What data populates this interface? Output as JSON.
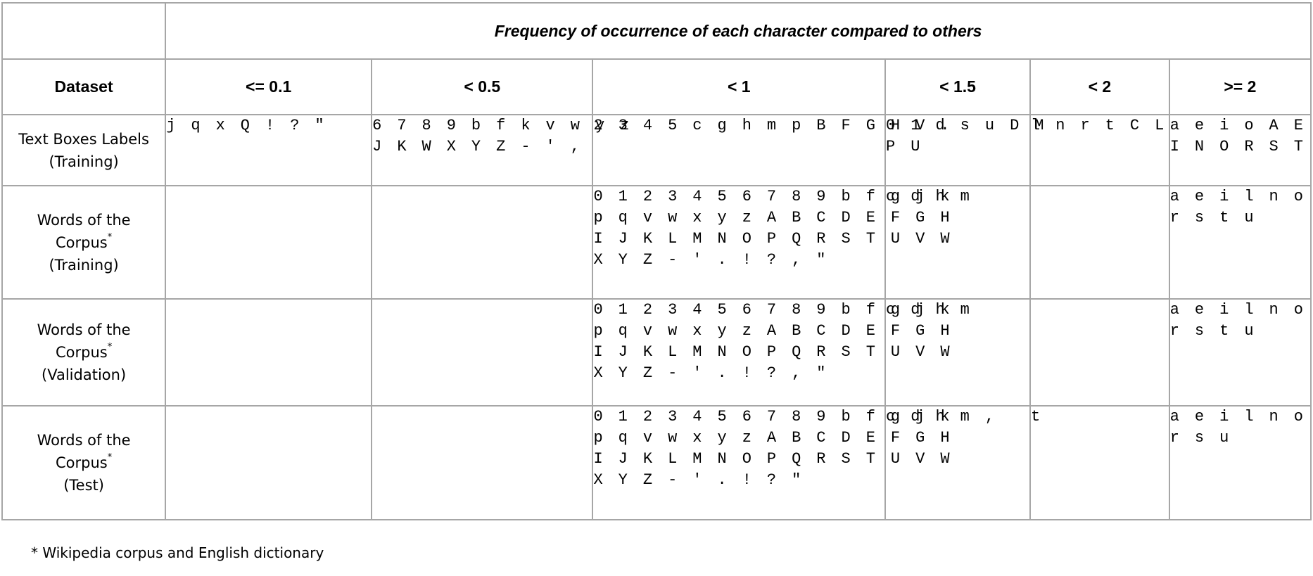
{
  "table": {
    "group_header": "Frequency of occurrence of each character compared to others",
    "dataset_header": "Dataset",
    "columns": [
      "<= 0.1",
      "< 0.5",
      "< 1",
      "< 1.5",
      "< 2",
      ">= 2"
    ],
    "rows": [
      {
        "dataset": {
          "line1": "Text Boxes Labels",
          "line1b": "",
          "marker": "",
          "line2": "(Training)"
        },
        "cells": [
          [
            "j q x Q ! ? \""
          ],
          [
            "6 7 8 9 b f k v w y z",
            "J K W X Y Z - ' ,"
          ],
          [
            "2 3 4 5 c g h m p B F G H V ."
          ],
          [
            "0 1 d s u D M",
            "P U"
          ],
          [
            "l n r t C L"
          ],
          [
            "a e i o A E",
            "I N O R S T"
          ]
        ]
      },
      {
        "dataset": {
          "line1": "Words of the",
          "line1b": "Corpus",
          "marker": "*",
          "line2": "(Training)"
        },
        "cells": [
          [],
          [],
          [
            "0 1 2 3 4 5 6 7 8 9 b f g j k",
            "p q v w x y z A B C D E F G H",
            "I J K L M N O P Q R S T U V W",
            "X Y Z - ' . ! ? , \""
          ],
          [
            "c d h m"
          ],
          [],
          [
            "a e i l n o",
            "r s t u"
          ]
        ]
      },
      {
        "dataset": {
          "line1": "Words of the",
          "line1b": "Corpus",
          "marker": "*",
          "line2": "(Validation)"
        },
        "cells": [
          [],
          [],
          [
            "0 1 2 3 4 5 6 7 8 9 b f g j k",
            "p q v w x y z A B C D E F G H",
            "I J K L M N O P Q R S T U V W",
            "X Y Z - ' . ! ? , \""
          ],
          [
            "c d h m"
          ],
          [],
          [
            "a e i l n o",
            "r s t u"
          ]
        ]
      },
      {
        "dataset": {
          "line1": "Words of the",
          "line1b": "Corpus",
          "marker": "*",
          "line2": "(Test)"
        },
        "cells": [
          [],
          [],
          [
            "0 1 2 3 4 5 6 7 8 9 b f g j k",
            "p q v w x y z A B C D E F G H",
            "I J K L M N O P Q R S T U V W",
            "X Y Z - ' . ! ? \""
          ],
          [
            "c d h m ,"
          ],
          [
            "t"
          ],
          [
            "a e i l n o",
            "r s u"
          ]
        ]
      }
    ]
  },
  "footnote": "* Wikipedia corpus and English dictionary"
}
